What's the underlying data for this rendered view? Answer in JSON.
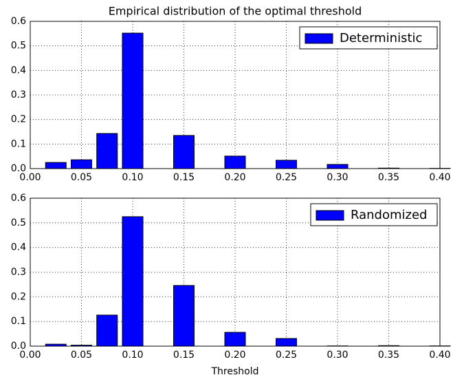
{
  "chart_data": [
    {
      "type": "bar",
      "title": "Empirical distribution of the optimal threshold",
      "x": [
        0.025,
        0.05,
        0.075,
        0.1,
        0.15,
        0.2,
        0.25,
        0.3,
        0.35,
        0.4
      ],
      "series": [
        {
          "name": "Deterministic",
          "color": "#0000ff",
          "values": [
            0.025,
            0.036,
            0.143,
            0.552,
            0.135,
            0.051,
            0.034,
            0.017,
            0.002,
            0.001
          ]
        }
      ],
      "xlim": [
        0,
        0.4
      ],
      "ylim": [
        0,
        0.6
      ],
      "xticks": [
        {
          "value": 0,
          "label": "0.00"
        },
        {
          "value": 0.05,
          "label": "0.05"
        },
        {
          "value": 0.1,
          "label": "0.10"
        },
        {
          "value": 0.15,
          "label": "0.15"
        },
        {
          "value": 0.2,
          "label": "0.20"
        },
        {
          "value": 0.25,
          "label": "0.25"
        },
        {
          "value": 0.3,
          "label": "0.30"
        },
        {
          "value": 0.35,
          "label": "0.35"
        },
        {
          "value": 0.4,
          "label": "0.40"
        }
      ],
      "yticks": [
        {
          "value": 0,
          "label": "0.0"
        },
        0.1,
        0.2,
        0.3,
        0.4,
        0.5,
        0.6
      ],
      "grid": true,
      "legend": "upper right"
    },
    {
      "type": "bar",
      "xlabel": "Threshold",
      "x": [
        0.025,
        0.05,
        0.075,
        0.1,
        0.15,
        0.2,
        0.25,
        0.3,
        0.35,
        0.4
      ],
      "series": [
        {
          "name": "Randomized",
          "color": "#0000ff",
          "values": [
            0.008,
            0.004,
            0.126,
            0.525,
            0.246,
            0.056,
            0.031,
            0.001,
            0.002,
            0.001
          ]
        }
      ],
      "xlim": [
        0,
        0.4
      ],
      "ylim": [
        0,
        0.6
      ],
      "xticks": [
        {
          "value": 0,
          "label": "0.00"
        },
        {
          "value": 0.05,
          "label": "0.05"
        },
        {
          "value": 0.1,
          "label": "0.10"
        },
        {
          "value": 0.15,
          "label": "0.15"
        },
        {
          "value": 0.2,
          "label": "0.20"
        },
        {
          "value": 0.25,
          "label": "0.25"
        },
        {
          "value": 0.3,
          "label": "0.30"
        },
        {
          "value": 0.35,
          "label": "0.35"
        },
        {
          "value": 0.4,
          "label": "0.40"
        }
      ],
      "yticks": [
        {
          "value": 0,
          "label": "0.0"
        },
        0.1,
        0.2,
        0.3,
        0.4,
        0.5,
        0.6
      ],
      "grid": true,
      "legend": "upper right"
    }
  ]
}
